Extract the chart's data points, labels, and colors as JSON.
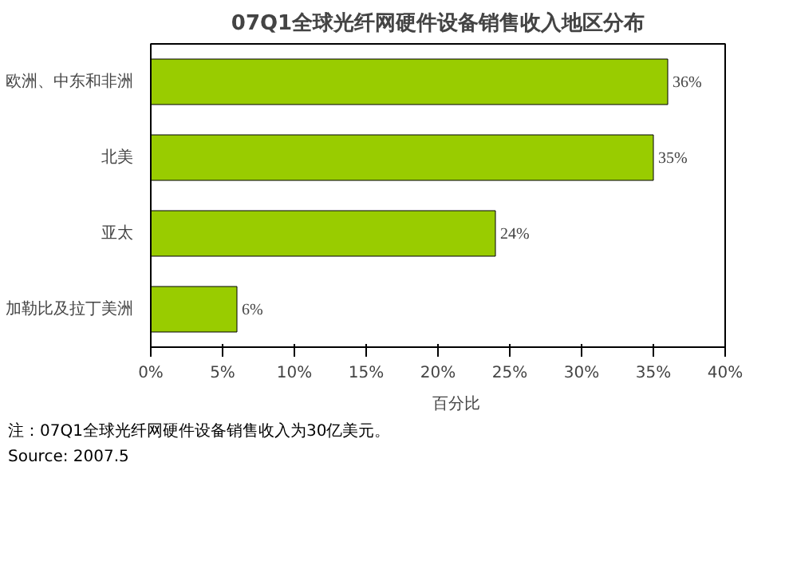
{
  "chart_data": {
    "type": "bar",
    "orientation": "horizontal",
    "title": "07Q1全球光纤网硬件设备销售收入地区分布",
    "categories": [
      "欧洲、中东和非洲",
      "北美",
      "亚太",
      "加勒比及拉丁美洲"
    ],
    "series": [
      {
        "name": "百分比",
        "color": "#99cc00",
        "values": [
          36,
          35,
          24,
          6
        ],
        "value_labels": [
          "36%",
          "35%",
          "24%",
          "6%"
        ]
      }
    ],
    "xlim": [
      0,
      40
    ],
    "xticks": [
      {
        "value": 0,
        "label": "0%"
      },
      {
        "value": 5,
        "label": "5%"
      },
      {
        "value": 10,
        "label": "10%"
      },
      {
        "value": 15,
        "label": "15%"
      },
      {
        "value": 20,
        "label": "20%"
      },
      {
        "value": 25,
        "label": "25%"
      },
      {
        "value": 30,
        "label": "30%"
      },
      {
        "value": 35,
        "label": "35%"
      },
      {
        "value": 40,
        "label": "40%"
      }
    ],
    "grid": false,
    "legend": "bottom",
    "annotations": [
      "注：07Q1全球光纤网硬件设备销售收入为30亿美元。",
      "Source: 2007.5"
    ]
  }
}
